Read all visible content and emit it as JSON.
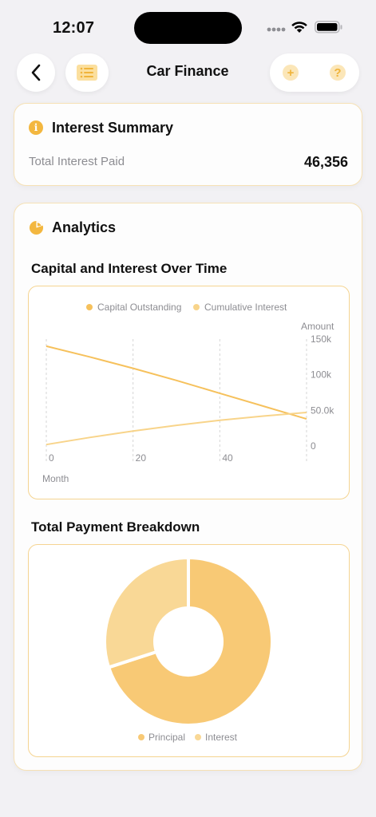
{
  "status_bar": {
    "time": "12:07"
  },
  "nav": {
    "title": "Car Finance"
  },
  "interest_summary": {
    "title": "Interest Summary",
    "label": "Total Interest Paid",
    "value": "46,356"
  },
  "analytics": {
    "title": "Analytics",
    "line_chart_title": "Capital and Interest Over Time",
    "pie_chart_title": "Total Payment Breakdown"
  },
  "colors": {
    "accent": "#f3b73f",
    "capital": "#f6c15c",
    "interest": "#f8d48a",
    "card_border": "#f6e1b5"
  },
  "chart_data": [
    {
      "type": "line",
      "legend_position": "top",
      "xlabel": "Month",
      "ylabel": "Amount",
      "xlim": [
        0,
        60
      ],
      "ylim": [
        0,
        150000
      ],
      "x_ticks": [
        "0",
        "20",
        "40"
      ],
      "y_ticks": [
        "0",
        "50.0k",
        "100k",
        "150k"
      ],
      "series": [
        {
          "name": "Capital Outstanding",
          "color": "#f6c15c",
          "x": [
            0,
            10,
            20,
            30,
            40,
            50,
            60
          ],
          "y": [
            140000,
            125000,
            109000,
            92000,
            74000,
            56000,
            38000
          ]
        },
        {
          "name": "Cumulative Interest",
          "color": "#f8d48a",
          "x": [
            0,
            10,
            20,
            30,
            40,
            50,
            60
          ],
          "y": [
            2000,
            12000,
            21000,
            29000,
            36000,
            42000,
            47000
          ]
        }
      ]
    },
    {
      "type": "pie",
      "donut": true,
      "legend_position": "bottom",
      "labels": [
        "Principal",
        "Interest"
      ],
      "values": [
        70,
        30
      ],
      "colors": [
        "#f8c975",
        "#f9d896"
      ]
    }
  ]
}
